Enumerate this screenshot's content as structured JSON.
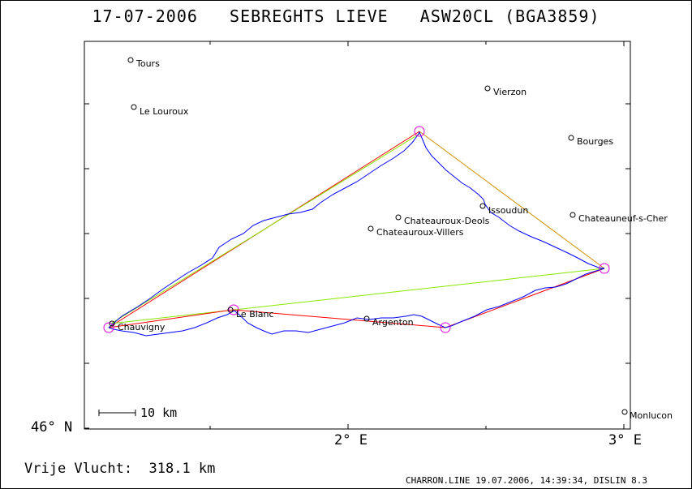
{
  "title": "17-07-2006   SEBREGHTS LIEVE   ASW20CL (BGA3859)",
  "footer": {
    "distance_text": "Vrije Vlucht:  318.1 km",
    "generator_text": "CHARRON.LINE 19.07.2006, 14:39:34, DISLIN 8.3"
  },
  "axes": {
    "x_ticks": [
      "2° E",
      "3° E"
    ],
    "y_ticks": [
      "46° N"
    ],
    "scale_bar": "10 km"
  },
  "towns": [
    {
      "name": "Tours"
    },
    {
      "name": "Le Louroux"
    },
    {
      "name": "Vierzon"
    },
    {
      "name": "Bourges"
    },
    {
      "name": "Issoudun"
    },
    {
      "name": "Chateauroux-Deols"
    },
    {
      "name": "Chateauneuf-s-Cher"
    },
    {
      "name": "Chateauroux-Villers"
    },
    {
      "name": "Chauvigny"
    },
    {
      "name": "Le Blanc"
    },
    {
      "name": "Argenton"
    },
    {
      "name": "Monlucon"
    }
  ],
  "colors": {
    "track": "#0000ff",
    "task_red": "#ff0000",
    "task_green": "#88e800",
    "turnpoint": "#e000e0",
    "orange": "#d09000"
  }
}
